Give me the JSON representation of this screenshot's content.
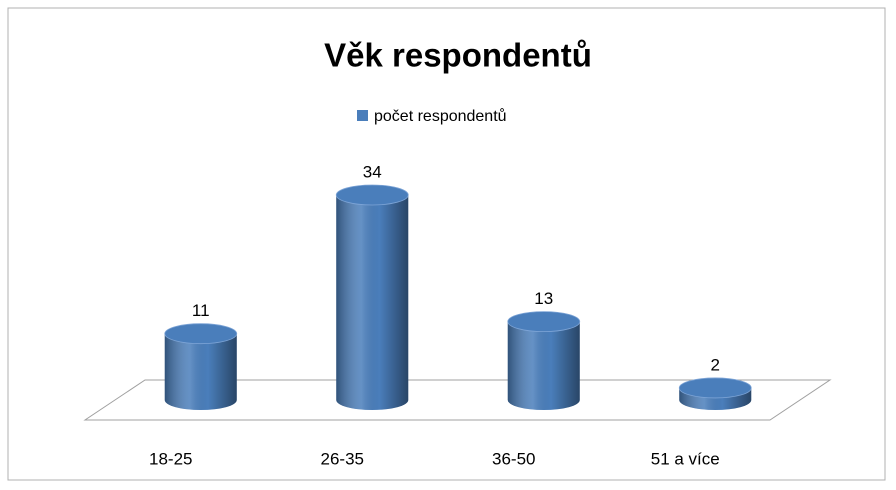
{
  "chart_data": {
    "type": "bar",
    "title": "Věk respondentů",
    "categories": [
      "18-25",
      "26-35",
      "36-50",
      "51 a více"
    ],
    "series": [
      {
        "name": "počet respondentů",
        "color": "#4a7ebb",
        "values": [
          11,
          34,
          13,
          2
        ]
      }
    ]
  }
}
